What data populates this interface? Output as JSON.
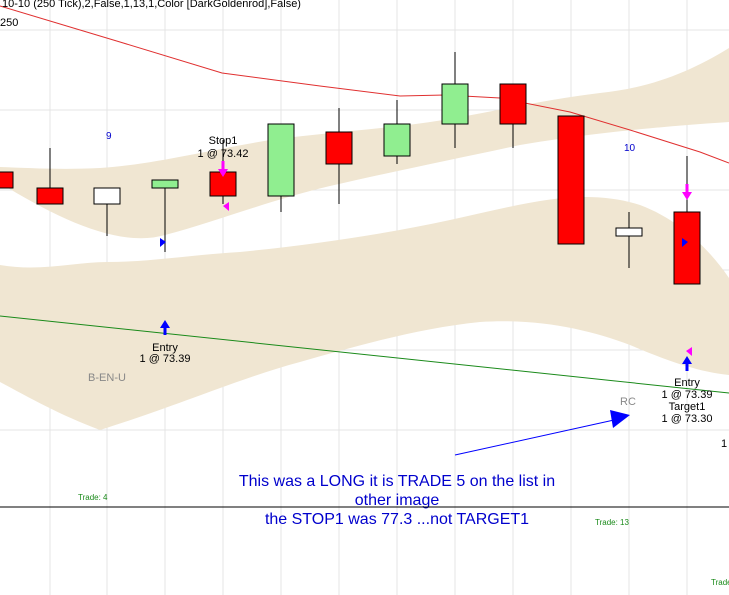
{
  "header": {
    "indicator_text": "10-10 (250 Tick),2,False,1,13,1,Color [DarkGoldenrod],False)",
    "tick_label": "250"
  },
  "colors": {
    "up_body": "#90ee90",
    "down_body": "#ff0000",
    "doji_body": "#ffffff",
    "band": "#f0e6d2",
    "red_line": "#e03030",
    "green_line": "#1a8a1a",
    "marker_magenta": "#ff00ff",
    "marker_blue": "#0000ff",
    "annotation_text": "#0000cc",
    "grid": "#e4e4e4"
  },
  "chart_data": {
    "type": "candlestick",
    "bars": [
      {
        "open": 25,
        "close": 23,
        "high": 25,
        "low": 23
      },
      {
        "open": 23,
        "close": 21,
        "high": 28,
        "low": 21
      },
      {
        "open": 23,
        "close": 21,
        "high": 23,
        "low": 17
      },
      {
        "open": 23,
        "close": 24,
        "high": 24,
        "low": 15
      },
      {
        "open": 25,
        "close": 22,
        "high": 29,
        "low": 21
      },
      {
        "open": 22,
        "close": 31,
        "high": 31,
        "low": 20
      },
      {
        "open": 30,
        "close": 26,
        "high": 33,
        "low": 21
      },
      {
        "open": 27,
        "close": 31,
        "high": 34,
        "low": 26
      },
      {
        "open": 31,
        "close": 36,
        "high": 40,
        "low": 28
      },
      {
        "open": 36,
        "close": 31,
        "high": 36,
        "low": 28
      },
      {
        "open": 32,
        "close": 16,
        "high": 32,
        "low": 16
      },
      {
        "open": 18,
        "close": 17,
        "high": 20,
        "low": 13
      },
      {
        "open": 20,
        "close": 11,
        "high": 27,
        "low": 11
      }
    ],
    "bar_numbers": [
      "9",
      "10"
    ],
    "signals": [
      {
        "label": "Stop1",
        "detail": "1 @ 73.42"
      },
      {
        "label": "Entry",
        "detail": "1 @ 73.39"
      },
      {
        "label": "Entry",
        "detail": "1 @ 73.39"
      },
      {
        "label": "Target1",
        "detail": "1 @ 73.30"
      }
    ],
    "pattern_labels": [
      "B-EN-U",
      "RC"
    ],
    "trade_labels": [
      "Trade: 4",
      "Trade: 13",
      "Trade"
    ],
    "edge_label": "1",
    "annotation": [
      "This was a LONG it is TRADE 5 on the list in",
      "other image",
      "the STOP1 was 77.3 ...not TARGET1"
    ],
    "grid": true
  }
}
